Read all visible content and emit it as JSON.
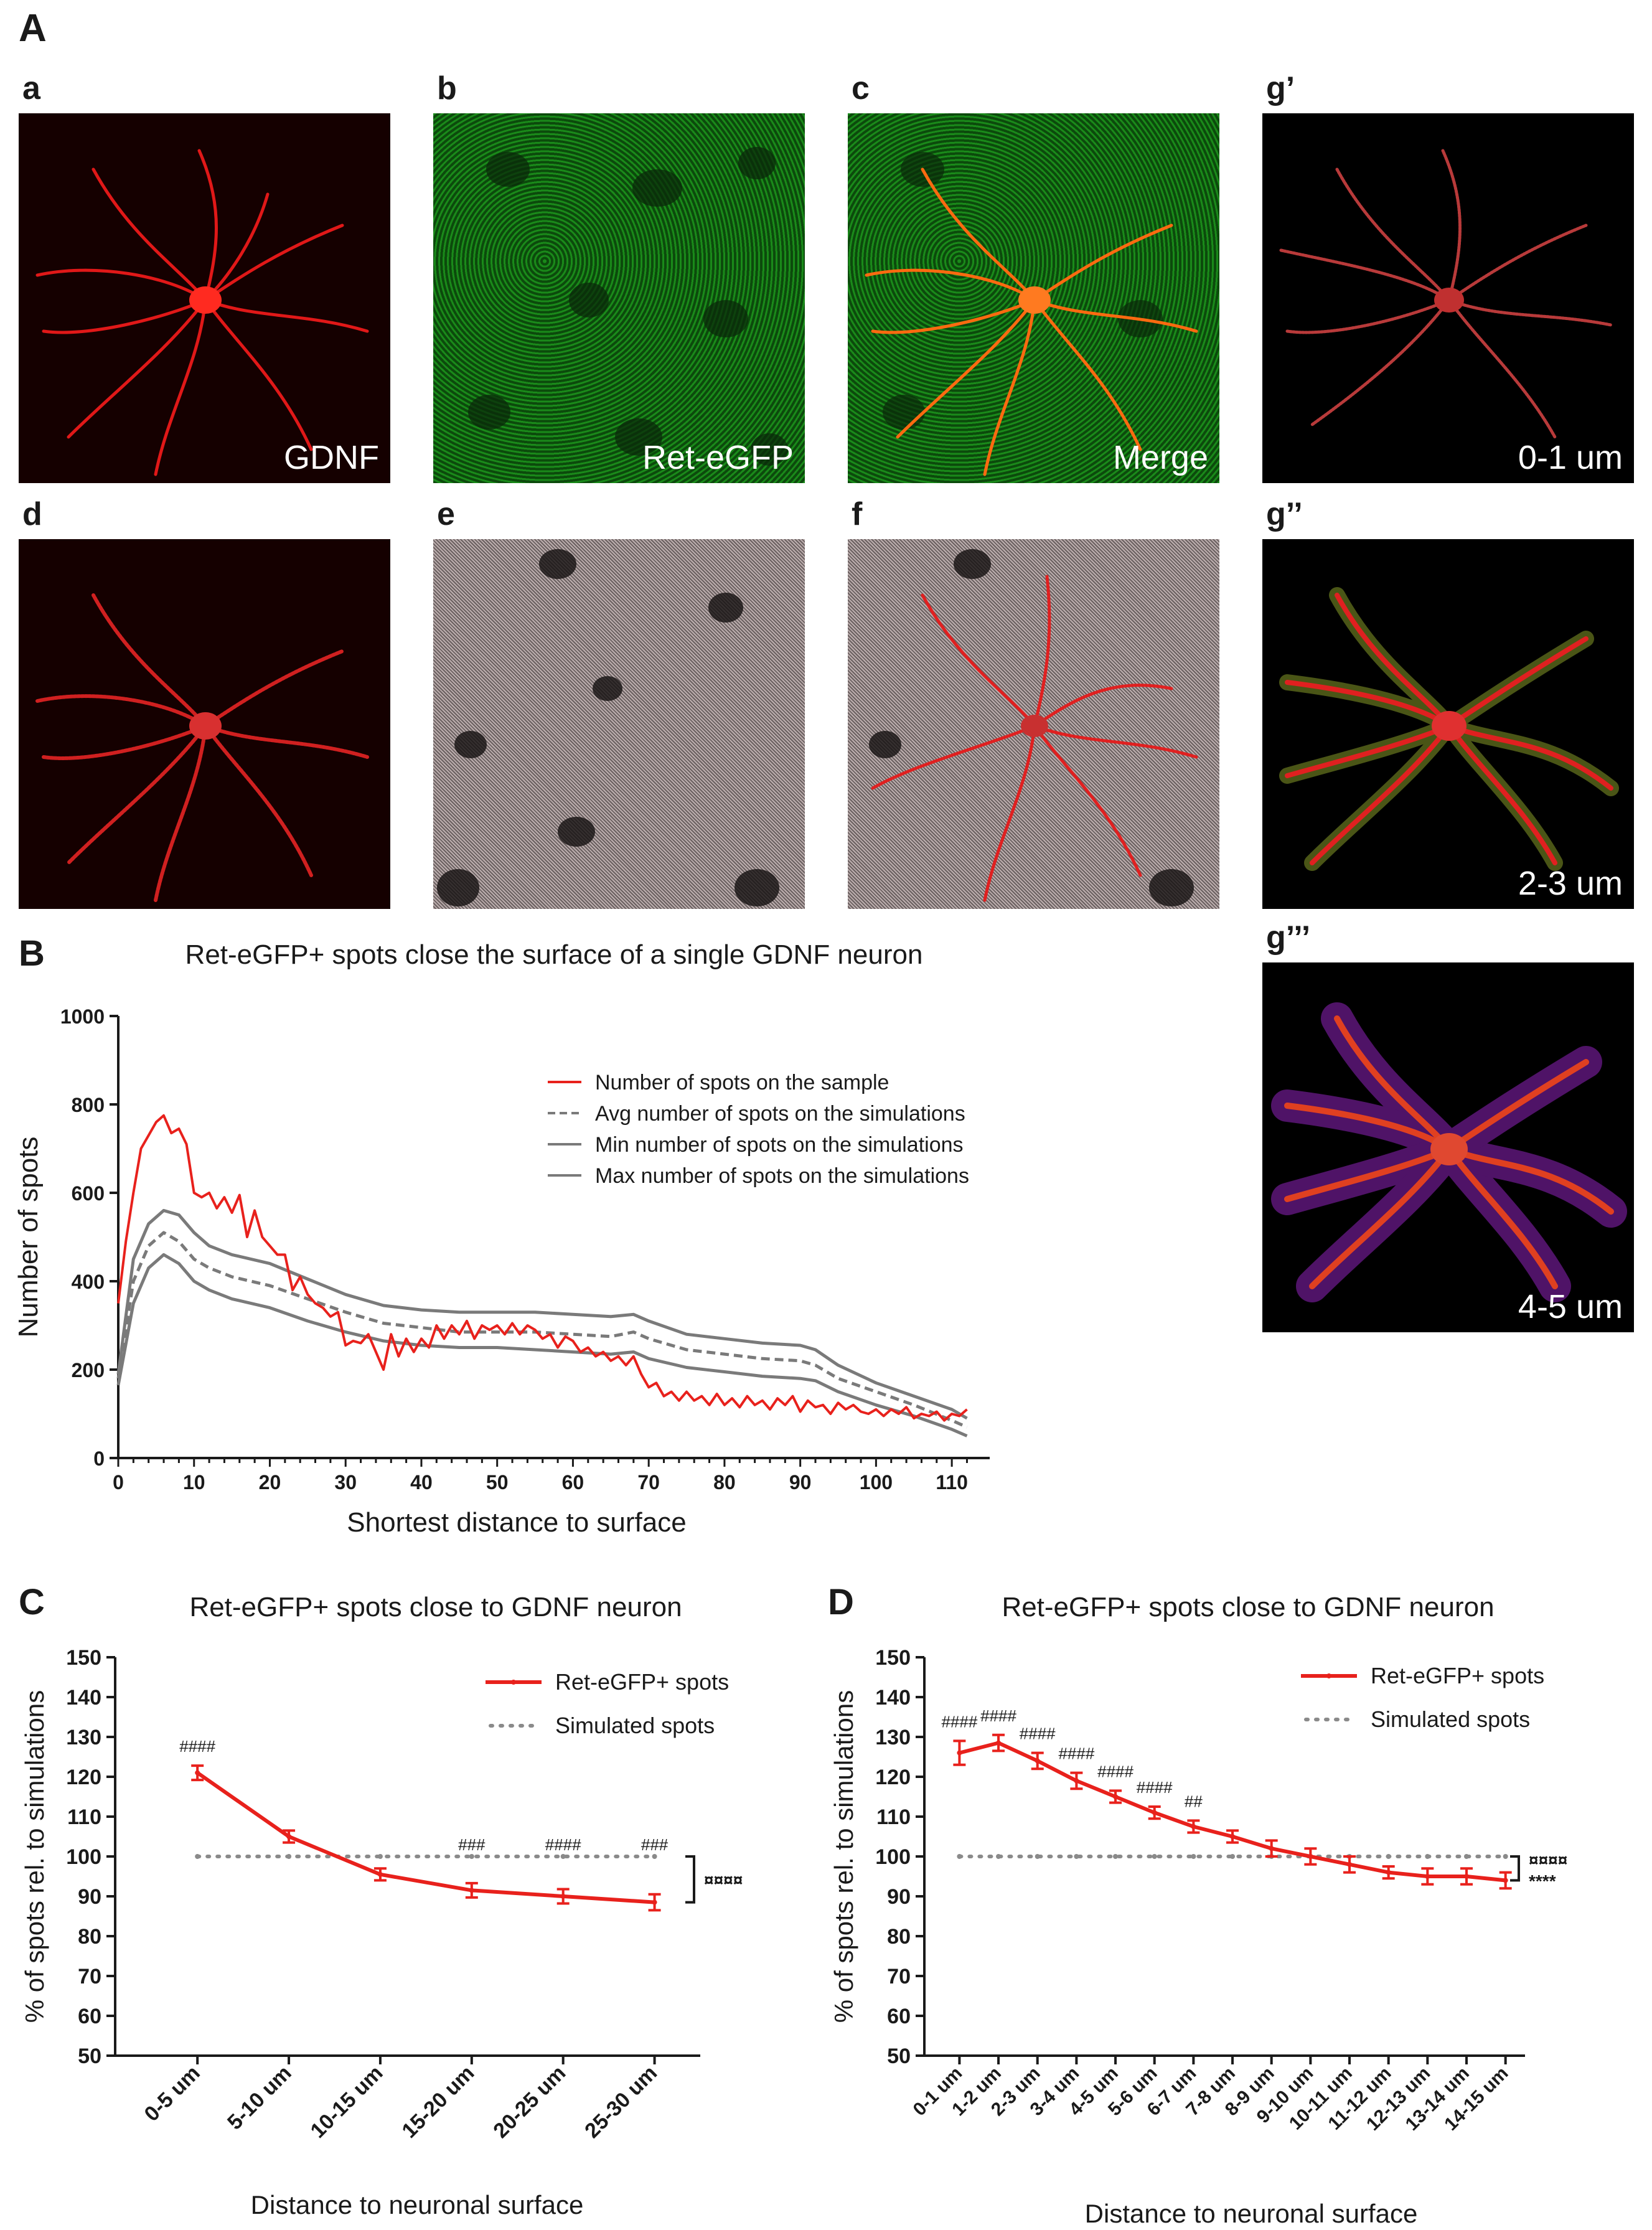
{
  "panel_A": {
    "letter": "A",
    "images": [
      {
        "letter": "a",
        "label": "GDNF"
      },
      {
        "letter": "b",
        "label": "Ret-eGFP"
      },
      {
        "letter": "c",
        "label": "Merge"
      },
      {
        "letter": "g’",
        "label": "0-1 um"
      },
      {
        "letter": "d",
        "label": ""
      },
      {
        "letter": "e",
        "label": ""
      },
      {
        "letter": "f",
        "label": ""
      },
      {
        "letter": "g’’",
        "label": "2-3 um"
      },
      {
        "letter": "g’’’",
        "label": "4-5 um"
      }
    ]
  },
  "panel_B": {
    "letter": "B"
  },
  "panel_C": {
    "letter": "C"
  },
  "panel_D": {
    "letter": "D"
  },
  "chart_data": [
    {
      "type": "line",
      "title": "Ret-eGFP+ spots close the surface of a single GDNF neuron",
      "xlabel": "Shortest distance to surface",
      "ylabel": "Number of spots",
      "xlim": [
        0,
        115
      ],
      "ylim": [
        0,
        1000
      ],
      "xticks": [
        0,
        10,
        20,
        30,
        40,
        50,
        60,
        70,
        80,
        90,
        100,
        110
      ],
      "yticks": [
        0,
        200,
        400,
        600,
        800,
        1000
      ],
      "legend_position": "top-right",
      "colors": {
        "sample": "#e8211c",
        "sim": "#7a7a7a"
      },
      "series": [
        {
          "name": "Number of spots on the sample",
          "style": "solid-red",
          "points": [
            [
              0,
              350
            ],
            [
              1,
              490
            ],
            [
              2,
              600
            ],
            [
              3,
              700
            ],
            [
              4,
              730
            ],
            [
              5,
              760
            ],
            [
              6,
              775
            ],
            [
              7,
              735
            ],
            [
              8,
              745
            ],
            [
              9,
              710
            ],
            [
              10,
              600
            ],
            [
              11,
              590
            ],
            [
              12,
              600
            ],
            [
              13,
              565
            ],
            [
              14,
              590
            ],
            [
              15,
              555
            ],
            [
              16,
              595
            ],
            [
              17,
              500
            ],
            [
              18,
              560
            ],
            [
              19,
              500
            ],
            [
              20,
              480
            ],
            [
              21,
              460
            ],
            [
              22,
              460
            ],
            [
              23,
              380
            ],
            [
              24,
              410
            ],
            [
              25,
              370
            ],
            [
              26,
              350
            ],
            [
              27,
              340
            ],
            [
              28,
              320
            ],
            [
              29,
              330
            ],
            [
              30,
              255
            ],
            [
              31,
              265
            ],
            [
              32,
              260
            ],
            [
              33,
              280
            ],
            [
              34,
              240
            ],
            [
              35,
              200
            ],
            [
              36,
              280
            ],
            [
              37,
              230
            ],
            [
              38,
              270
            ],
            [
              39,
              240
            ],
            [
              40,
              270
            ],
            [
              41,
              250
            ],
            [
              42,
              300
            ],
            [
              43,
              270
            ],
            [
              44,
              300
            ],
            [
              45,
              280
            ],
            [
              46,
              310
            ],
            [
              47,
              270
            ],
            [
              48,
              300
            ],
            [
              49,
              290
            ],
            [
              50,
              300
            ],
            [
              51,
              280
            ],
            [
              52,
              305
            ],
            [
              53,
              280
            ],
            [
              54,
              300
            ],
            [
              55,
              290
            ],
            [
              56,
              270
            ],
            [
              57,
              280
            ],
            [
              58,
              250
            ],
            [
              59,
              275
            ],
            [
              60,
              265
            ],
            [
              61,
              240
            ],
            [
              62,
              250
            ],
            [
              63,
              230
            ],
            [
              64,
              240
            ],
            [
              65,
              220
            ],
            [
              66,
              230
            ],
            [
              67,
              210
            ],
            [
              68,
              230
            ],
            [
              69,
              190
            ],
            [
              70,
              160
            ],
            [
              71,
              170
            ],
            [
              72,
              140
            ],
            [
              73,
              150
            ],
            [
              74,
              130
            ],
            [
              75,
              150
            ],
            [
              76,
              130
            ],
            [
              77,
              140
            ],
            [
              78,
              120
            ],
            [
              79,
              145
            ],
            [
              80,
              120
            ],
            [
              81,
              135
            ],
            [
              82,
              115
            ],
            [
              83,
              140
            ],
            [
              84,
              120
            ],
            [
              85,
              130
            ],
            [
              86,
              110
            ],
            [
              87,
              135
            ],
            [
              88,
              120
            ],
            [
              89,
              140
            ],
            [
              90,
              105
            ],
            [
              91,
              130
            ],
            [
              92,
              115
            ],
            [
              93,
              120
            ],
            [
              94,
              100
            ],
            [
              95,
              125
            ],
            [
              96,
              110
            ],
            [
              97,
              120
            ],
            [
              98,
              105
            ],
            [
              99,
              100
            ],
            [
              100,
              110
            ],
            [
              101,
              95
            ],
            [
              102,
              110
            ],
            [
              103,
              100
            ],
            [
              104,
              115
            ],
            [
              105,
              90
            ],
            [
              106,
              100
            ],
            [
              107,
              95
            ],
            [
              108,
              105
            ],
            [
              109,
              85
            ],
            [
              110,
              100
            ],
            [
              111,
              95
            ],
            [
              112,
              110
            ]
          ]
        },
        {
          "name": "Avg number of spots on the simulations",
          "style": "dashed-gray",
          "points": [
            [
              0,
              180
            ],
            [
              2,
              400
            ],
            [
              4,
              480
            ],
            [
              6,
              510
            ],
            [
              8,
              490
            ],
            [
              10,
              450
            ],
            [
              12,
              430
            ],
            [
              15,
              410
            ],
            [
              20,
              390
            ],
            [
              25,
              360
            ],
            [
              30,
              330
            ],
            [
              35,
              305
            ],
            [
              40,
              295
            ],
            [
              45,
              285
            ],
            [
              50,
              285
            ],
            [
              55,
              285
            ],
            [
              60,
              280
            ],
            [
              65,
              275
            ],
            [
              68,
              285
            ],
            [
              70,
              270
            ],
            [
              75,
              245
            ],
            [
              80,
              235
            ],
            [
              85,
              225
            ],
            [
              90,
              220
            ],
            [
              92,
              210
            ],
            [
              95,
              180
            ],
            [
              100,
              150
            ],
            [
              105,
              120
            ],
            [
              110,
              85
            ],
            [
              112,
              70
            ]
          ]
        },
        {
          "name": "Min number of spots on the simulations",
          "style": "solid-gray",
          "points": [
            [
              0,
              165
            ],
            [
              2,
              350
            ],
            [
              4,
              430
            ],
            [
              6,
              460
            ],
            [
              8,
              440
            ],
            [
              10,
              400
            ],
            [
              12,
              380
            ],
            [
              15,
              360
            ],
            [
              20,
              340
            ],
            [
              25,
              310
            ],
            [
              30,
              285
            ],
            [
              35,
              265
            ],
            [
              40,
              255
            ],
            [
              45,
              250
            ],
            [
              50,
              250
            ],
            [
              55,
              245
            ],
            [
              60,
              240
            ],
            [
              65,
              235
            ],
            [
              68,
              240
            ],
            [
              70,
              225
            ],
            [
              75,
              205
            ],
            [
              80,
              195
            ],
            [
              85,
              185
            ],
            [
              90,
              180
            ],
            [
              92,
              175
            ],
            [
              95,
              150
            ],
            [
              100,
              120
            ],
            [
              105,
              95
            ],
            [
              110,
              65
            ],
            [
              112,
              50
            ]
          ]
        },
        {
          "name": "Max number of spots on the simulations",
          "style": "solid-gray",
          "points": [
            [
              0,
              190
            ],
            [
              2,
              450
            ],
            [
              4,
              530
            ],
            [
              6,
              560
            ],
            [
              8,
              550
            ],
            [
              10,
              510
            ],
            [
              12,
              480
            ],
            [
              15,
              460
            ],
            [
              20,
              440
            ],
            [
              25,
              405
            ],
            [
              30,
              370
            ],
            [
              35,
              345
            ],
            [
              40,
              335
            ],
            [
              45,
              330
            ],
            [
              50,
              330
            ],
            [
              55,
              330
            ],
            [
              60,
              325
            ],
            [
              65,
              320
            ],
            [
              68,
              325
            ],
            [
              70,
              310
            ],
            [
              75,
              280
            ],
            [
              80,
              270
            ],
            [
              85,
              260
            ],
            [
              90,
              255
            ],
            [
              92,
              245
            ],
            [
              95,
              210
            ],
            [
              100,
              170
            ],
            [
              105,
              140
            ],
            [
              110,
              110
            ],
            [
              112,
              90
            ]
          ]
        }
      ]
    },
    {
      "type": "line",
      "title": "Ret-eGFP+ spots close to GDNF neuron",
      "xlabel": "Distance to neuronal surface",
      "ylabel": "% of spots rel. to simulations",
      "ylim": [
        50,
        150
      ],
      "yticks": [
        50,
        60,
        70,
        80,
        90,
        100,
        110,
        120,
        130,
        140,
        150
      ],
      "legend_position": "top-right",
      "categories": [
        "0-5 um",
        "5-10 um",
        "10-15 um",
        "15-20 um",
        "20-25 um",
        "25-30 um"
      ],
      "series": [
        {
          "name": "Ret-eGFP+ spots",
          "values": [
            121,
            105,
            95.5,
            91.5,
            90,
            88.5
          ],
          "errors": [
            1.8,
            1.5,
            1.5,
            1.8,
            1.8,
            2
          ]
        },
        {
          "name": "Simulated spots",
          "values": [
            100,
            100,
            100,
            100,
            100,
            100
          ]
        }
      ],
      "annotations": [
        "####",
        "",
        "",
        "###",
        "####",
        "###"
      ],
      "bracket_label": "¤¤¤¤"
    },
    {
      "type": "line",
      "title": "Ret-eGFP+ spots close to GDNF neuron",
      "xlabel": "Distance to neuronal surface",
      "ylabel": "% of spots rel. to simulations",
      "ylim": [
        50,
        150
      ],
      "yticks": [
        50,
        60,
        70,
        80,
        90,
        100,
        110,
        120,
        130,
        140,
        150
      ],
      "legend_position": "top-right",
      "categories": [
        "0-1 um",
        "1-2 um",
        "2-3 um",
        "3-4 um",
        "4-5 um",
        "5-6 um",
        "6-7 um",
        "7-8 um",
        "8-9 um",
        "9-10 um",
        "10-11 um",
        "11-12 um",
        "12-13 um",
        "13-14 um",
        "14-15 um"
      ],
      "series": [
        {
          "name": "Ret-eGFP+ spots",
          "values": [
            126,
            128.5,
            124,
            119,
            115,
            111,
            107.5,
            105,
            102,
            100,
            98,
            96,
            95,
            95,
            94
          ],
          "errors": [
            3,
            2,
            2,
            2,
            1.5,
            1.5,
            1.5,
            1.5,
            2,
            2,
            2,
            1.5,
            2,
            2,
            2
          ]
        },
        {
          "name": "Simulated spots",
          "values": [
            100,
            100,
            100,
            100,
            100,
            100,
            100,
            100,
            100,
            100,
            100,
            100,
            100,
            100,
            100
          ]
        }
      ],
      "annotations": [
        "####",
        "####",
        "####",
        "####",
        "####",
        "####",
        "##",
        "",
        "",
        "",
        "",
        "",
        "",
        "",
        ""
      ],
      "bracket_label": "¤¤¤¤",
      "bracket_label_2": "****"
    }
  ]
}
